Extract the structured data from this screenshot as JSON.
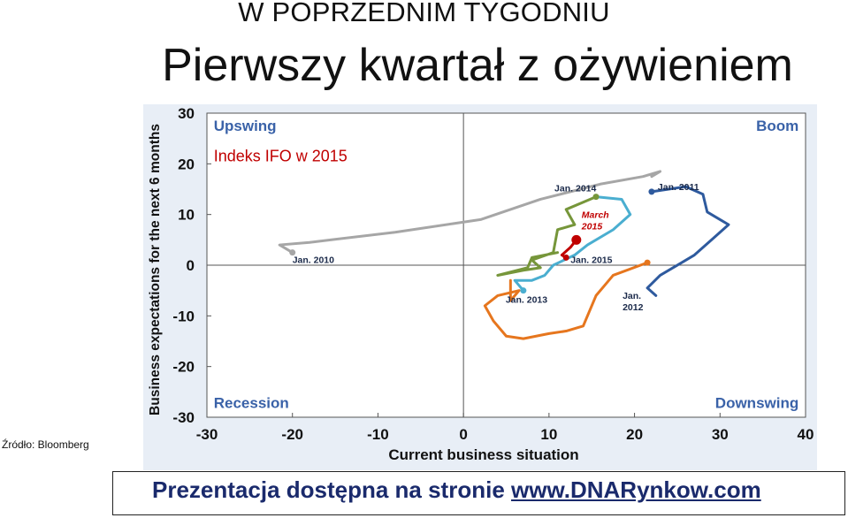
{
  "header": {
    "kicker": "W POPRZEDNIM TYGODNIU",
    "title": "Pierwszy kwartał z ożywieniem"
  },
  "source_note": "Źródło: Bloomberg",
  "footer": {
    "text": "Prezentacja dostępna na stronie",
    "link": "www.DNARynkow.com"
  },
  "colors": {
    "plot_background": "#e8eef6",
    "quadrant_label": "#3a62a8",
    "accent_red": "#c00000",
    "series_2010": "#a6a6a6",
    "series_2011": "#2e5a9e",
    "series_2012": "#e6761e",
    "series_2013": "#4aaed0",
    "series_2014": "#76963a",
    "series_2015": "#c00000"
  },
  "chart_data": {
    "type": "line",
    "title": "Indeks IFO w 2015",
    "xlabel": "Current business situation",
    "ylabel": "Business expectations for the next 6 months",
    "xlim": [
      -30,
      40
    ],
    "ylim": [
      -30,
      30
    ],
    "xticks": [
      "-30",
      "-20",
      "-10",
      "0",
      "10",
      "20",
      "30",
      "40"
    ],
    "yticks": [
      "30",
      "20",
      "10",
      "0",
      "-10",
      "-20",
      "-30"
    ],
    "quadrants": [
      "Upswing",
      "Boom",
      "Recession",
      "Downswing"
    ],
    "series": [
      {
        "name": "Jan. 2010",
        "color_key": "series_2010",
        "x": [
          -20,
          -21.5,
          -18,
          -8,
          2,
          9,
          16,
          21,
          23,
          22
        ],
        "y": [
          2.5,
          4,
          4.5,
          6.5,
          9,
          13,
          16,
          17.5,
          18.5,
          17.5
        ]
      },
      {
        "name": "Jan. 2011",
        "color_key": "series_2011",
        "x": [
          22,
          26,
          28,
          28.5,
          29.5,
          31,
          29,
          27,
          23,
          21.5,
          22.5
        ],
        "y": [
          14.5,
          15.5,
          14,
          10.5,
          9.5,
          8,
          5,
          2,
          -2,
          -4.5,
          -6
        ]
      },
      {
        "name": "Jan. 2012",
        "color_key": "series_2012",
        "x": [
          21.5,
          17.5,
          16.5,
          15.5,
          14,
          12,
          10,
          7,
          5,
          3.5,
          2.5,
          4,
          6.5,
          5.5,
          5.5
        ],
        "y": [
          0.5,
          -2,
          -4,
          -6,
          -12,
          -13,
          -13.5,
          -14.5,
          -14,
          -11,
          -8,
          -6,
          -5,
          -7,
          -3
        ]
      },
      {
        "name": "Jan. 2013",
        "color_key": "series_2013",
        "x": [
          7,
          6,
          8,
          9.5,
          10.5,
          13,
          14.5,
          17.5,
          19.5,
          18.5,
          15.5
        ],
        "y": [
          -5,
          -3,
          -3,
          -2,
          0,
          2,
          4,
          7,
          10,
          13,
          13.5
        ]
      },
      {
        "name": "Jan. 2014",
        "color_key": "series_2014",
        "x": [
          15.5,
          12,
          13,
          11,
          10.5,
          8,
          9,
          7,
          4,
          7.5,
          8,
          11
        ],
        "y": [
          13.5,
          11,
          8,
          7,
          2.5,
          1,
          -0.5,
          -1,
          -2,
          -0.5,
          1.5,
          2.5
        ]
      },
      {
        "name": "Jan. 2015",
        "color_key": "series_2015",
        "x": [
          12,
          11.5,
          12.5,
          13.2
        ],
        "y": [
          1.5,
          2,
          3.5,
          5
        ]
      }
    ],
    "annotations": [
      {
        "text": "Jan. 2010",
        "x": -20,
        "y": 2.5
      },
      {
        "text": "Jan. 2011",
        "x": 22,
        "y": 14.5
      },
      {
        "text": "Jan.",
        "x": 21.5,
        "y": -3.5
      },
      {
        "text": "2012",
        "x": 21.5,
        "y": -3.5
      },
      {
        "text": "Jan. 2013",
        "x": 7,
        "y": -5
      },
      {
        "text": "Jan. 2014",
        "x": 15.5,
        "y": 13.5
      },
      {
        "text": "Jan. 2015",
        "x": 12,
        "y": 1.5
      },
      {
        "text": "March",
        "x": 13.2,
        "y": 5
      },
      {
        "text": "2015",
        "x": 13.2,
        "y": 5
      }
    ]
  }
}
